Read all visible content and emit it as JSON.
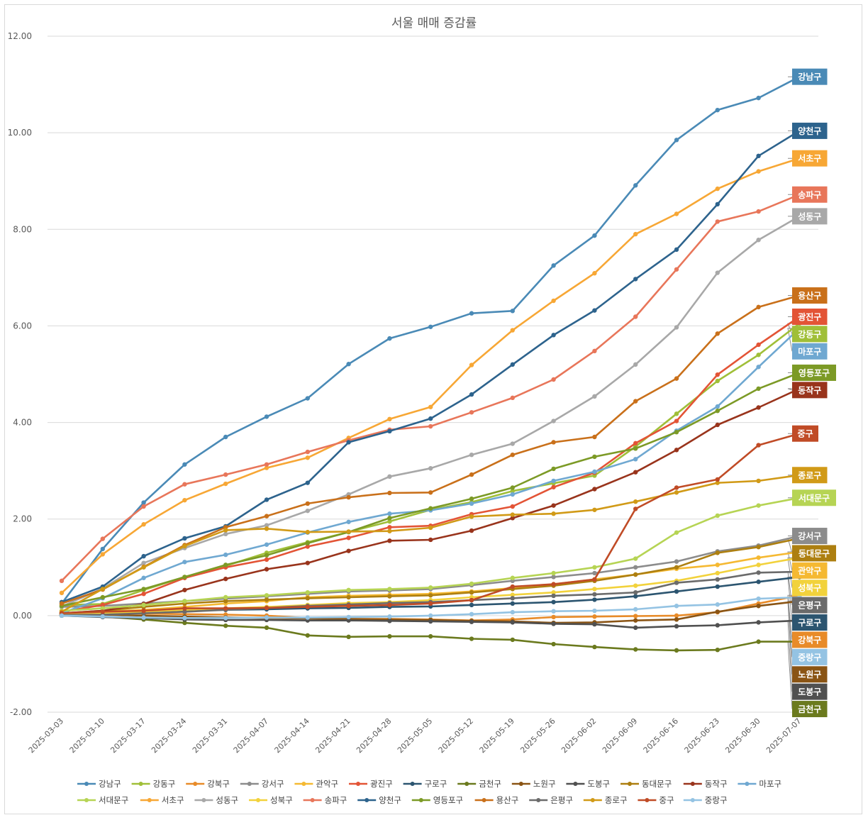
{
  "chart_data": {
    "type": "line",
    "title": "서울 매매 증감률",
    "xlabel": "",
    "ylabel": "",
    "ylim": [
      -2,
      12
    ],
    "yticks": [
      "-2.00",
      "0.00",
      "2.00",
      "4.00",
      "6.00",
      "8.00",
      "10.00",
      "12.00"
    ],
    "grid": true,
    "legend_position": "bottom",
    "x": [
      "2025-03-03",
      "2025-03-10",
      "2025-03-17",
      "2025-03-24",
      "2025-03-31",
      "2025-04-07",
      "2025-04-14",
      "2025-04-21",
      "2025-04-28",
      "2025-05-05",
      "2025-05-12",
      "2025-05-19",
      "2025-05-26",
      "2025-06-02",
      "2025-06-09",
      "2025-06-16",
      "2025-06-23",
      "2025-06-30",
      "2025-07-07"
    ],
    "series": [
      {
        "name": "강남구",
        "color": "#4a8ab6",
        "values": [
          0.25,
          1.38,
          2.34,
          3.13,
          3.7,
          4.12,
          4.5,
          5.21,
          5.74,
          5.98,
          6.26,
          6.31,
          7.25,
          7.87,
          8.91,
          9.85,
          10.47,
          10.72,
          11.16
        ]
      },
      {
        "name": "강동구",
        "color": "#a0bf38",
        "values": [
          0.22,
          0.24,
          0.53,
          0.8,
          1.03,
          1.3,
          1.52,
          1.73,
          1.95,
          2.19,
          2.35,
          2.58,
          2.74,
          2.9,
          3.5,
          4.18,
          4.86,
          5.4,
          6.05
        ]
      },
      {
        "name": "강북구",
        "color": "#e88b29",
        "values": [
          0.05,
          0.06,
          0.04,
          0.03,
          0.02,
          0.0,
          -0.05,
          -0.07,
          -0.07,
          -0.08,
          -0.1,
          -0.08,
          -0.03,
          -0.02,
          -0.01,
          0.0,
          0.07,
          0.25,
          0.42
        ]
      },
      {
        "name": "강서구",
        "color": "#8c8c8c",
        "values": [
          0.18,
          0.2,
          0.25,
          0.3,
          0.35,
          0.4,
          0.45,
          0.5,
          0.52,
          0.55,
          0.63,
          0.72,
          0.8,
          0.88,
          1.0,
          1.12,
          1.33,
          1.45,
          1.65
        ]
      },
      {
        "name": "관악구",
        "color": "#f5b932",
        "values": [
          0.03,
          0.08,
          0.12,
          0.18,
          0.25,
          0.3,
          0.38,
          0.41,
          0.43,
          0.45,
          0.5,
          0.57,
          0.65,
          0.75,
          0.85,
          0.97,
          1.05,
          1.2,
          1.32
        ]
      },
      {
        "name": "광진구",
        "color": "#e35436",
        "values": [
          0.08,
          0.22,
          0.45,
          0.78,
          1.0,
          1.16,
          1.43,
          1.61,
          1.83,
          1.86,
          2.1,
          2.26,
          2.66,
          2.96,
          3.57,
          4.03,
          4.99,
          5.61,
          6.19
        ]
      },
      {
        "name": "구로구",
        "color": "#2c5570",
        "values": [
          0.02,
          0.05,
          0.08,
          0.1,
          0.12,
          0.13,
          0.15,
          0.16,
          0.18,
          0.19,
          0.22,
          0.25,
          0.28,
          0.33,
          0.4,
          0.5,
          0.6,
          0.7,
          0.8
        ]
      },
      {
        "name": "금천구",
        "color": "#6b7a1e",
        "values": [
          0.0,
          -0.02,
          -0.08,
          -0.15,
          -0.21,
          -0.25,
          -0.41,
          -0.44,
          -0.43,
          -0.43,
          -0.48,
          -0.5,
          -0.59,
          -0.65,
          -0.7,
          -0.72,
          -0.71,
          -0.54,
          -0.54
        ]
      },
      {
        "name": "노원구",
        "color": "#8a5414",
        "values": [
          0.02,
          0.02,
          0.0,
          -0.02,
          -0.04,
          -0.05,
          -0.06,
          -0.07,
          -0.08,
          -0.09,
          -0.11,
          -0.12,
          -0.15,
          -0.14,
          -0.1,
          -0.08,
          0.08,
          0.2,
          0.3
        ]
      },
      {
        "name": "도봉구",
        "color": "#505050",
        "values": [
          0.0,
          -0.03,
          -0.05,
          -0.08,
          -0.09,
          -0.09,
          -0.1,
          -0.1,
          -0.11,
          -0.12,
          -0.13,
          -0.14,
          -0.17,
          -0.18,
          -0.25,
          -0.22,
          -0.2,
          -0.14,
          -0.1
        ]
      },
      {
        "name": "동대문구",
        "color": "#ad7f10",
        "values": [
          0.05,
          0.1,
          0.18,
          0.25,
          0.3,
          0.33,
          0.36,
          0.38,
          0.4,
          0.42,
          0.48,
          0.55,
          0.62,
          0.72,
          0.85,
          1.0,
          1.3,
          1.42,
          1.6
        ]
      },
      {
        "name": "동작구",
        "color": "#99341c",
        "values": [
          0.05,
          0.1,
          0.24,
          0.53,
          0.76,
          0.96,
          1.09,
          1.34,
          1.55,
          1.57,
          1.76,
          2.02,
          2.28,
          2.62,
          2.97,
          3.43,
          3.95,
          4.31,
          4.7
        ]
      },
      {
        "name": "마포구",
        "color": "#6fa8d1",
        "values": [
          0.05,
          0.36,
          0.78,
          1.11,
          1.26,
          1.47,
          1.72,
          1.94,
          2.11,
          2.18,
          2.32,
          2.51,
          2.79,
          2.98,
          3.24,
          3.83,
          4.33,
          5.15,
          5.95
        ]
      },
      {
        "name": "서대문구",
        "color": "#b6d454",
        "values": [
          0.1,
          0.15,
          0.22,
          0.3,
          0.38,
          0.42,
          0.48,
          0.53,
          0.55,
          0.58,
          0.66,
          0.78,
          0.88,
          1.0,
          1.18,
          1.72,
          2.07,
          2.28,
          2.44
        ]
      },
      {
        "name": "서초구",
        "color": "#f7a735",
        "values": [
          0.47,
          1.27,
          1.89,
          2.39,
          2.73,
          3.06,
          3.27,
          3.68,
          4.07,
          4.32,
          5.19,
          5.91,
          6.52,
          7.09,
          7.9,
          8.32,
          8.84,
          9.2,
          9.47
        ]
      },
      {
        "name": "성동구",
        "color": "#a8a8a8",
        "values": [
          0.19,
          0.56,
          1.09,
          1.4,
          1.69,
          1.87,
          2.17,
          2.51,
          2.88,
          3.05,
          3.33,
          3.56,
          4.03,
          4.54,
          5.2,
          5.97,
          7.1,
          7.78,
          8.27
        ]
      },
      {
        "name": "성북구",
        "color": "#f2d23c",
        "values": [
          0.02,
          0.05,
          0.08,
          0.12,
          0.15,
          0.18,
          0.22,
          0.26,
          0.28,
          0.32,
          0.38,
          0.43,
          0.48,
          0.55,
          0.62,
          0.72,
          0.88,
          1.05,
          1.2
        ]
      },
      {
        "name": "송파구",
        "color": "#e8765a",
        "values": [
          0.72,
          1.59,
          2.26,
          2.72,
          2.92,
          3.13,
          3.39,
          3.63,
          3.85,
          3.92,
          4.21,
          4.51,
          4.89,
          5.48,
          6.19,
          7.17,
          8.16,
          8.37,
          8.72
        ]
      },
      {
        "name": "양천구",
        "color": "#2d638d",
        "values": [
          0.28,
          0.6,
          1.23,
          1.6,
          1.85,
          2.4,
          2.75,
          3.59,
          3.82,
          4.08,
          4.58,
          5.2,
          5.81,
          6.32,
          6.97,
          7.58,
          8.52,
          9.52,
          10.04
        ]
      },
      {
        "name": "영등포구",
        "color": "#7c9a26",
        "values": [
          0.2,
          0.38,
          0.55,
          0.8,
          1.05,
          1.25,
          1.5,
          1.73,
          2.02,
          2.22,
          2.42,
          2.65,
          3.04,
          3.29,
          3.46,
          3.8,
          4.24,
          4.7,
          5.03
        ]
      },
      {
        "name": "용산구",
        "color": "#c9701a",
        "values": [
          0.25,
          0.54,
          1.01,
          1.46,
          1.83,
          2.06,
          2.32,
          2.45,
          2.54,
          2.55,
          2.92,
          3.33,
          3.59,
          3.7,
          4.44,
          4.91,
          5.84,
          6.39,
          6.63
        ]
      },
      {
        "name": "은평구",
        "color": "#6b6b6b",
        "values": [
          0.01,
          0.02,
          0.05,
          0.08,
          0.12,
          0.16,
          0.2,
          0.23,
          0.26,
          0.28,
          0.32,
          0.36,
          0.41,
          0.44,
          0.48,
          0.68,
          0.75,
          0.89,
          0.91
        ]
      },
      {
        "name": "종로구",
        "color": "#d19a17",
        "values": [
          0.08,
          0.55,
          1.0,
          1.44,
          1.77,
          1.8,
          1.73,
          1.74,
          1.75,
          1.82,
          2.05,
          2.09,
          2.11,
          2.19,
          2.36,
          2.55,
          2.75,
          2.79,
          2.91
        ]
      },
      {
        "name": "중구",
        "color": "#c04b26",
        "values": [
          0.05,
          0.08,
          0.1,
          0.15,
          0.15,
          0.16,
          0.18,
          0.2,
          0.22,
          0.25,
          0.32,
          0.6,
          0.65,
          0.75,
          2.21,
          2.65,
          2.82,
          3.53,
          3.77
        ]
      },
      {
        "name": "중랑구",
        "color": "#94c3e3",
        "values": [
          0.0,
          -0.02,
          -0.04,
          -0.05,
          -0.05,
          -0.04,
          -0.04,
          -0.03,
          -0.02,
          0.0,
          0.03,
          0.07,
          0.09,
          0.1,
          0.13,
          0.2,
          0.23,
          0.35,
          0.38
        ]
      }
    ],
    "end_labels": [
      {
        "name": "강남구",
        "color": "#4a8ab6"
      },
      {
        "name": "양천구",
        "color": "#2d638d"
      },
      {
        "name": "서초구",
        "color": "#f7a735"
      },
      {
        "name": "송파구",
        "color": "#e8765a"
      },
      {
        "name": "성동구",
        "color": "#a8a8a8"
      },
      {
        "name": "용산구",
        "color": "#c9701a"
      },
      {
        "name": "광진구",
        "color": "#e35436"
      },
      {
        "name": "강동구",
        "color": "#a0bf38"
      },
      {
        "name": "마포구",
        "color": "#6fa8d1"
      },
      {
        "name": "영등포구",
        "color": "#7c9a26"
      },
      {
        "name": "동작구",
        "color": "#99341c"
      },
      {
        "name": "중구",
        "color": "#c04b26"
      },
      {
        "name": "종로구",
        "color": "#d19a17"
      },
      {
        "name": "서대문구",
        "color": "#b6d454"
      },
      {
        "name": "강서구",
        "color": "#8c8c8c"
      },
      {
        "name": "동대문구",
        "color": "#ad7f10"
      },
      {
        "name": "관악구",
        "color": "#f5b932"
      },
      {
        "name": "성북구",
        "color": "#f2d23c"
      },
      {
        "name": "은평구",
        "color": "#6b6b6b"
      },
      {
        "name": "구로구",
        "color": "#2c5570"
      },
      {
        "name": "강북구",
        "color": "#e88b29"
      },
      {
        "name": "중랑구",
        "color": "#94c3e3"
      },
      {
        "name": "노원구",
        "color": "#8a5414"
      },
      {
        "name": "도봉구",
        "color": "#505050"
      },
      {
        "name": "금천구",
        "color": "#6b7a1e"
      }
    ]
  }
}
